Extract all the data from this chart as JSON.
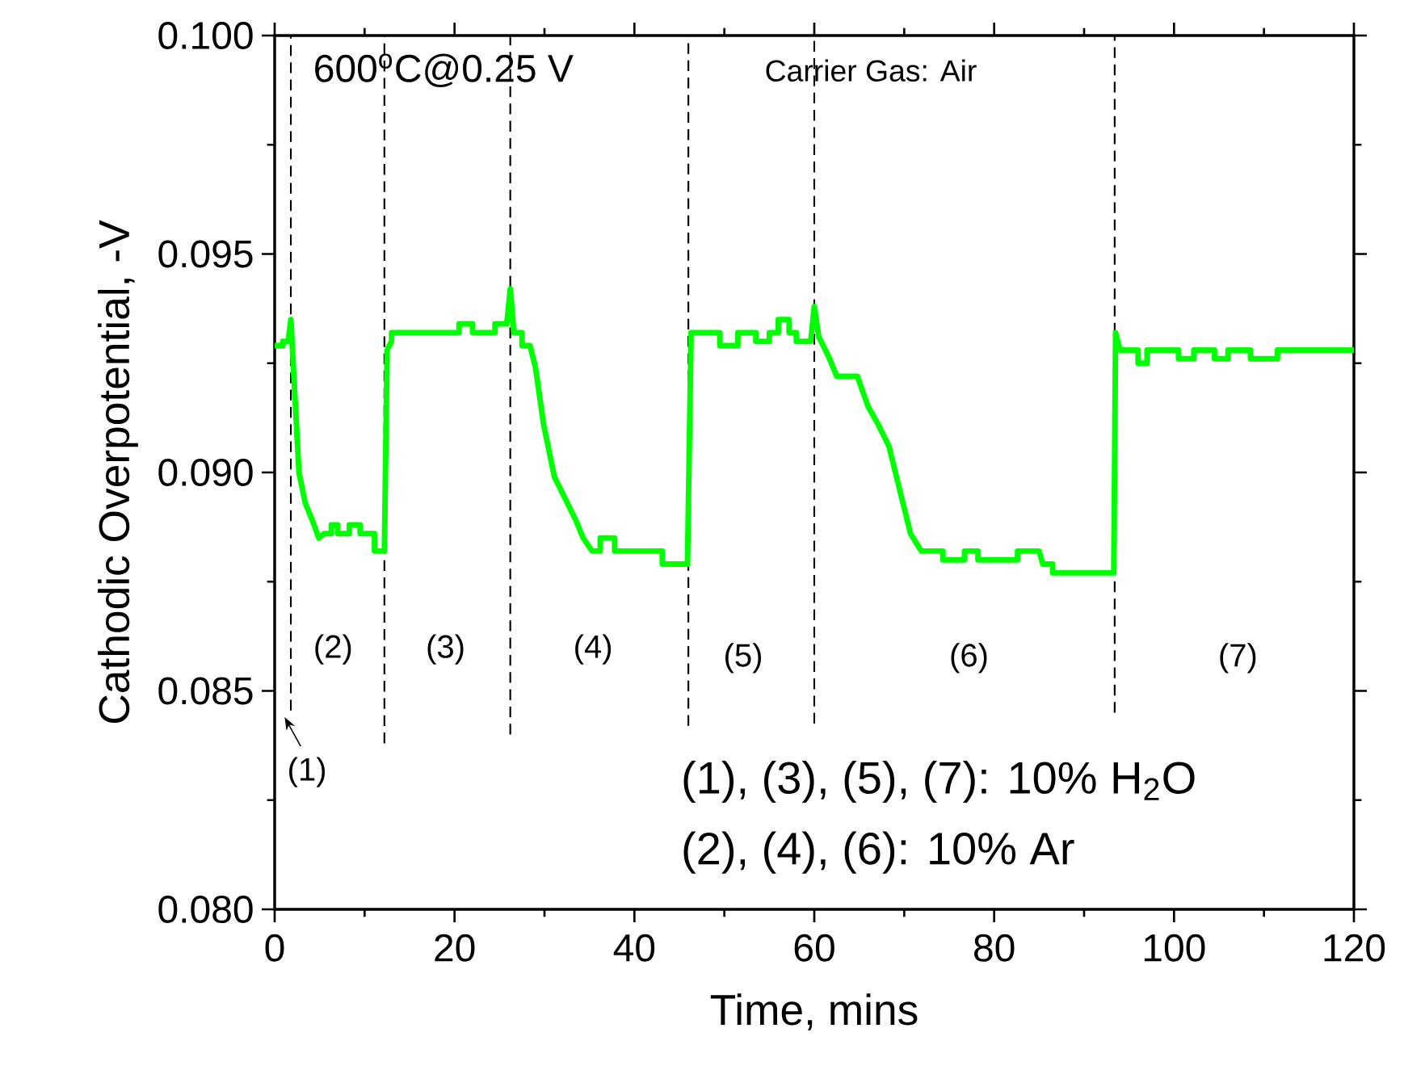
{
  "chart_data": {
    "type": "line",
    "xlabel": "Time, mins",
    "ylabel": "Cathodic Overpotential, -V",
    "xlim": [
      0,
      120
    ],
    "ylim": [
      0.08,
      0.1
    ],
    "xticks": [
      0,
      20,
      40,
      60,
      80,
      100,
      120
    ],
    "yticks": [
      {
        "value": 0.08,
        "label": "0.080"
      },
      {
        "value": 0.085,
        "label": "0.085"
      },
      {
        "value": 0.09,
        "label": "0.090"
      },
      {
        "value": 0.095,
        "label": "0.095"
      },
      {
        "value": 0.1,
        "label": "0.100"
      }
    ],
    "series": [
      {
        "color": "#00ff00",
        "x": [
          0.0,
          0.9,
          0.9,
          1.5,
          1.8,
          2.7,
          3.4,
          4.2,
          4.9,
          5.5,
          6.3,
          6.3,
          7.0,
          7.0,
          8.3,
          8.3,
          9.5,
          9.5,
          11.1,
          11.1,
          12.2,
          12.5,
          13.0,
          13.0,
          20.5,
          20.5,
          22.0,
          22.0,
          24.5,
          24.5,
          25.8,
          26.2,
          26.6,
          27.5,
          27.5,
          28.4,
          29.0,
          29.9,
          31.1,
          32.3,
          33.5,
          34.3,
          35.3,
          36.2,
          36.2,
          37.8,
          37.8,
          43.1,
          43.1,
          45.9,
          46.3,
          49.5,
          49.5,
          51.5,
          51.5,
          53.5,
          53.5,
          55.0,
          55.0,
          56.0,
          56.0,
          57.2,
          57.2,
          58.0,
          58.0,
          59.6,
          60.0,
          60.5,
          61.0,
          61.7,
          62.5,
          64.8,
          65.3,
          66.0,
          67.1,
          68.3,
          69.5,
          70.7,
          71.9,
          74.3,
          74.3,
          76.7,
          76.7,
          78.2,
          78.2,
          82.6,
          82.6,
          85.0,
          85.4,
          86.5,
          86.5,
          93.3,
          93.5,
          94.0,
          96.0,
          96.0,
          97.0,
          97.0,
          100.5,
          100.5,
          102.2,
          102.2,
          104.5,
          104.5,
          106.0,
          106.0,
          108.5,
          108.5,
          111.5,
          111.5,
          120.0
        ],
        "values": [
          0.0929,
          0.0929,
          0.093,
          0.093,
          0.0935,
          0.09,
          0.0893,
          0.0889,
          0.0885,
          0.0886,
          0.0886,
          0.0888,
          0.0888,
          0.0886,
          0.0886,
          0.0888,
          0.0888,
          0.0886,
          0.0886,
          0.0882,
          0.0882,
          0.0928,
          0.093,
          0.0932,
          0.0932,
          0.0934,
          0.0934,
          0.0932,
          0.0932,
          0.0934,
          0.0934,
          0.0942,
          0.0932,
          0.0932,
          0.0929,
          0.0929,
          0.0924,
          0.0911,
          0.0899,
          0.0894,
          0.0889,
          0.0885,
          0.0882,
          0.0882,
          0.0885,
          0.0885,
          0.0882,
          0.0882,
          0.0879,
          0.0879,
          0.0932,
          0.0932,
          0.0929,
          0.0929,
          0.0932,
          0.0932,
          0.093,
          0.093,
          0.0932,
          0.0932,
          0.0935,
          0.0935,
          0.0932,
          0.0932,
          0.093,
          0.093,
          0.0938,
          0.0931,
          0.0929,
          0.0926,
          0.0922,
          0.0922,
          0.0919,
          0.0915,
          0.0911,
          0.0906,
          0.0896,
          0.0886,
          0.0882,
          0.0882,
          0.088,
          0.088,
          0.0882,
          0.0882,
          0.088,
          0.088,
          0.0882,
          0.0882,
          0.0879,
          0.0879,
          0.0877,
          0.0877,
          0.0932,
          0.0928,
          0.0928,
          0.0925,
          0.0925,
          0.0928,
          0.0928,
          0.0926,
          0.0926,
          0.0928,
          0.0928,
          0.0926,
          0.0926,
          0.0928,
          0.0928,
          0.0926,
          0.0926,
          0.0928,
          0.0928
        ]
      }
    ],
    "ref_lines": [
      {
        "axis": "x",
        "value": 1.8,
        "color": "#000000",
        "line_style": "dashed"
      },
      {
        "axis": "x",
        "value": 12.2,
        "color": "#000000",
        "line_style": "dashed"
      },
      {
        "axis": "x",
        "value": 26.2,
        "color": "#000000",
        "line_style": "dashed"
      },
      {
        "axis": "x",
        "value": 46.0,
        "color": "#000000",
        "line_style": "dashed"
      },
      {
        "axis": "x",
        "value": 60.0,
        "color": "#000000",
        "line_style": "dashed"
      },
      {
        "axis": "x",
        "value": 93.4,
        "color": "#000000",
        "line_style": "dashed"
      }
    ],
    "annotations": [
      "600$^{o}$C@0.25 V",
      "Carrier Gas: Air",
      "(1)",
      "(2)",
      "(3)",
      "(4)",
      "(5)",
      "(6)",
      "(7)",
      "(1), (3), (5), (7): 10% H$_{2}$O",
      "(2), (4), (6): 10% Ar"
    ]
  }
}
